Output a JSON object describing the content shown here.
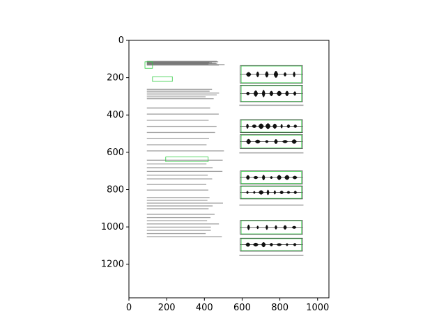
{
  "chart_data": {
    "type": "image",
    "title": "",
    "xlabel": "",
    "ylabel": "",
    "xlim": [
      0,
      1060
    ],
    "ylim": [
      1380,
      0
    ],
    "x_ticks": [
      0,
      200,
      400,
      600,
      800,
      1000
    ],
    "y_ticks": [
      0,
      200,
      400,
      600,
      800,
      1000,
      1200
    ],
    "x_tick_labels": [
      "0",
      "200",
      "400",
      "600",
      "800",
      "1000"
    ],
    "y_tick_labels": [
      "0",
      "200",
      "400",
      "600",
      "800",
      "1000",
      "1200"
    ],
    "grid": false,
    "colors": {
      "axis": "#000000",
      "background": "#ffffff",
      "box_overlay": "#2ecc40",
      "text_gray": "#555555",
      "waveform": "#111111"
    }
  }
}
